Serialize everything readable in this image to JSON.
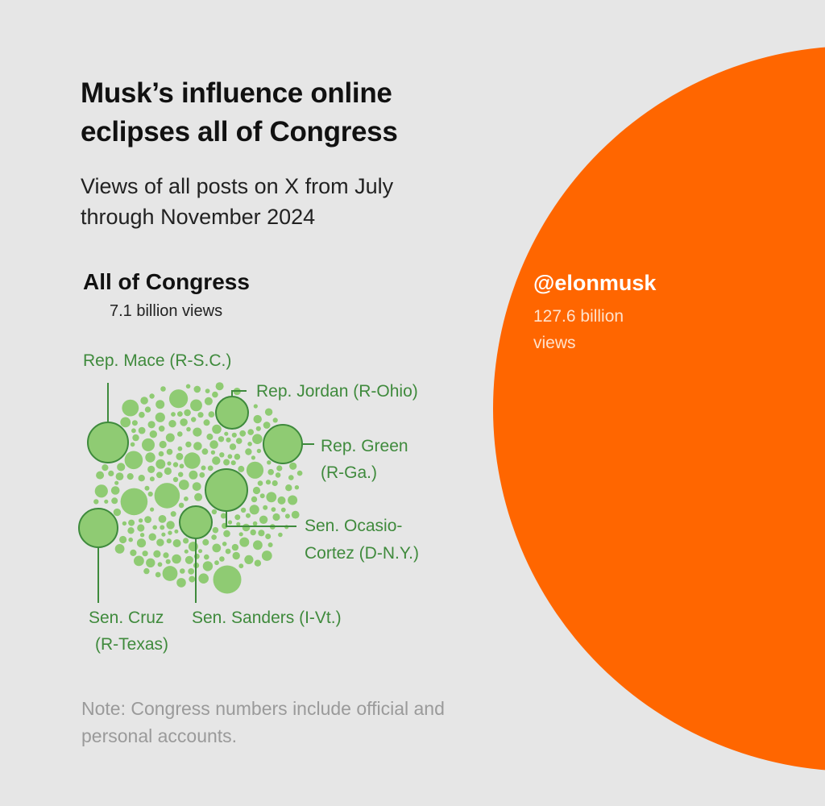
{
  "chart_data": {
    "type": "bubble",
    "title": "Musk’s influence online eclipses all of Congress",
    "subtitle": "Views of all posts on X from July through November 2024",
    "unit": "views",
    "comparison": [
      {
        "name": "All of Congress",
        "label": "7.1 billion views",
        "value_billions": 7.1
      },
      {
        "name": "@elonmusk",
        "label": "127.6 billion views",
        "value_billions": 127.6
      }
    ],
    "highlighted_members": [
      {
        "label": "Rep. Mace (R-S.C.)"
      },
      {
        "label": "Rep. Jordan (R-Ohio)"
      },
      {
        "label": "Rep. Green (R-Ga.)"
      },
      {
        "label": "Sen. Ocasio-Cortez (D-N.Y.)"
      },
      {
        "label": "Sen. Cruz (R-Texas)"
      },
      {
        "label": "Sen. Sanders (I-Vt.)"
      }
    ],
    "note": "Note: Congress numbers include official and personal accounts."
  },
  "header": {
    "title": "Musk’s influence online eclipses all of Congress",
    "subtitle": "Views of all posts on X from July through November 2024"
  },
  "congress": {
    "label": "All of Congress",
    "value": "7.1 billion views"
  },
  "musk": {
    "handle": "@elonmusk",
    "value": "127.6 billion views"
  },
  "callouts": {
    "mace": "Rep. Mace (R-S.C.)",
    "jordan": "Rep. Jordan (R-Ohio)",
    "green_1": "Rep. Green",
    "green_2": "(R-Ga.)",
    "aoc_1": "Sen. Ocasio-",
    "aoc_2": "Cortez (D-N.Y.)",
    "cruz_1": "Sen. Cruz",
    "cruz_2": "(R-Texas)",
    "sanders": "Sen. Sanders (I-Vt.)"
  },
  "note": "Note: Congress numbers include official and personal accounts.",
  "colors": {
    "background": "#e6e6e6",
    "musk": "#ff6600",
    "congress_fill": "#8fcb73",
    "congress_stroke": "#3e8a3c",
    "callout_text": "#3f8a3c"
  }
}
